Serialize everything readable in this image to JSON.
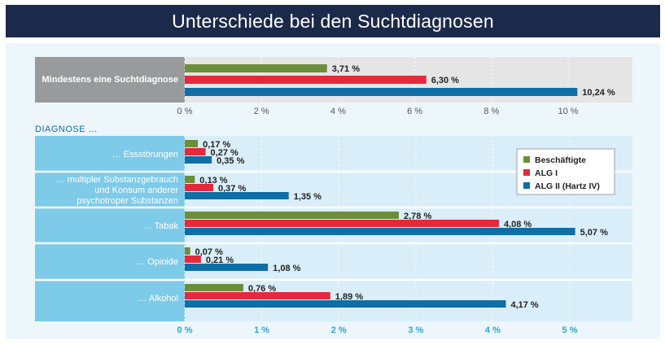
{
  "title": "Unterschiede bei den Suchtdiagnosen",
  "colors": {
    "beschaeftigte": "#6b8e3a",
    "alg1": "#e5283b",
    "alg2": "#0f6ea5",
    "gray_label": "#999a9c",
    "blue_label": "#7ecae9",
    "top_bg": "#e5e5e5",
    "bottom_bg": "#d9eef8"
  },
  "chart_data": [
    {
      "type": "bar",
      "orientation": "horizontal",
      "categories": [
        "Mindestens eine Suchtdiagnose"
      ],
      "series": [
        {
          "name": "Beschäftigte",
          "values": [
            3.71
          ]
        },
        {
          "name": "ALG I",
          "values": [
            6.3
          ]
        },
        {
          "name": "ALG II (Hartz IV)",
          "values": [
            10.24
          ]
        }
      ],
      "value_labels": [
        [
          "3,71 %"
        ],
        [
          "6,30 %"
        ],
        [
          "10,24 %"
        ]
      ],
      "xlim": [
        0,
        12
      ],
      "xticks": [
        0,
        2,
        4,
        6,
        8,
        10
      ],
      "xtick_labels": [
        "0 %",
        "2 %",
        "4 %",
        "6 %",
        "8 %",
        "10 %"
      ],
      "grid": true
    },
    {
      "type": "bar",
      "orientation": "horizontal",
      "section_label": "DIAGNOSE …",
      "categories": [
        "… Essstörungen",
        "… multipler Substanzgebrauch und Konsum anderer psychotroper Substanzen",
        "… Tabak",
        "… Opioide",
        "… Alkohol"
      ],
      "category_lines": [
        [
          "… Essstörungen"
        ],
        [
          "… multipler Substanzgebrauch",
          "und Konsum anderer",
          "psychotroper Substanzen"
        ],
        [
          "… Tabak"
        ],
        [
          "… Opioide"
        ],
        [
          "… Alkohol"
        ]
      ],
      "series": [
        {
          "name": "Beschäftigte",
          "values": [
            0.17,
            0.13,
            2.78,
            0.07,
            0.76
          ]
        },
        {
          "name": "ALG I",
          "values": [
            0.27,
            0.37,
            4.08,
            0.21,
            1.89
          ]
        },
        {
          "name": "ALG II (Hartz IV)",
          "values": [
            0.35,
            1.35,
            5.07,
            1.08,
            4.17
          ]
        }
      ],
      "value_labels": [
        [
          "0,17 %",
          "0,13 %",
          "2,78 %",
          "0,07 %",
          "0,76 %"
        ],
        [
          "0,27 %",
          "0,37 %",
          "4,08 %",
          "0,21 %",
          "1,89 %"
        ],
        [
          "0,35 %",
          "1,35 %",
          "5,07 %",
          "1,08 %",
          "4,17 %"
        ]
      ],
      "xlim": [
        0,
        6
      ],
      "xticks": [
        0,
        1,
        2,
        3,
        4,
        5
      ],
      "xtick_labels": [
        "0 %",
        "1 %",
        "2 %",
        "3 %",
        "4 %",
        "5 %"
      ],
      "grid": true,
      "legend": {
        "placement": "top-right",
        "entries": [
          "Beschäftigte",
          "ALG I",
          "ALG II (Hartz IV)"
        ]
      }
    }
  ]
}
